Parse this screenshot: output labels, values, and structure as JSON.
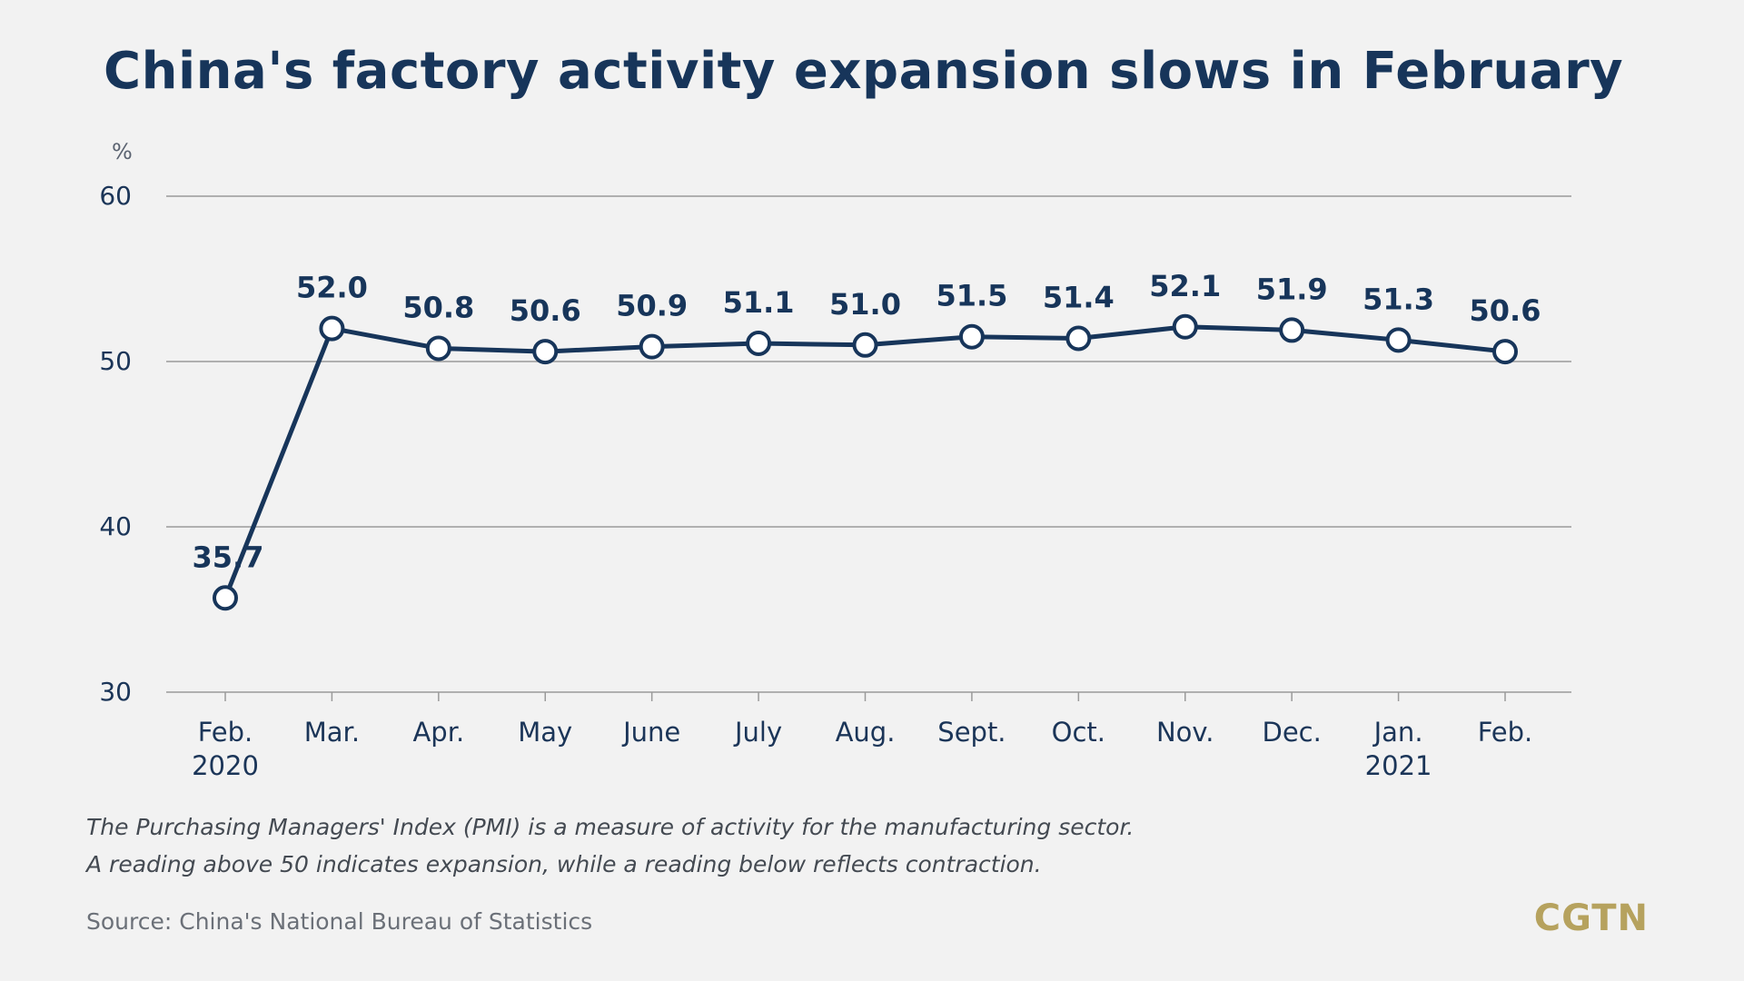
{
  "title": "China's factory activity expansion slows in February",
  "notes": [
    "The Purchasing Managers' Index (PMI) is a measure of activity for the manufacturing sector.",
    "A reading above 50 indicates expansion, while a reading below reflects contraction."
  ],
  "source": "Source: China's National Bureau of Statistics",
  "logo": "CGTN",
  "colors": {
    "line": "#17355a",
    "marker_fill": "#ffffff",
    "grid": "#9a9a9a",
    "background": "#f2f2f2",
    "logo": "#b6a25e"
  },
  "chart_data": {
    "type": "line",
    "title": "China's factory activity expansion slows in February",
    "ylabel": "%",
    "ylim": [
      30,
      60
    ],
    "yticks": [
      30,
      40,
      50,
      60
    ],
    "grid": true,
    "categories": [
      [
        "Feb.",
        "2020"
      ],
      [
        "Mar."
      ],
      [
        "Apr."
      ],
      [
        "May"
      ],
      [
        "June"
      ],
      [
        "July"
      ],
      [
        "Aug."
      ],
      [
        "Sept."
      ],
      [
        "Oct."
      ],
      [
        "Nov."
      ],
      [
        "Dec."
      ],
      [
        "Jan.",
        "2021"
      ],
      [
        "Feb."
      ]
    ],
    "series": [
      {
        "values": [
          35.7,
          52.0,
          50.8,
          50.6,
          50.9,
          51.1,
          51.0,
          51.5,
          51.4,
          52.1,
          51.9,
          51.3,
          50.6
        ],
        "labels": [
          "35.7",
          "52.0",
          "50.8",
          "50.6",
          "50.9",
          "51.1",
          "51.0",
          "51.5",
          "51.4",
          "52.1",
          "51.9",
          "51.3",
          "50.6"
        ]
      }
    ]
  }
}
